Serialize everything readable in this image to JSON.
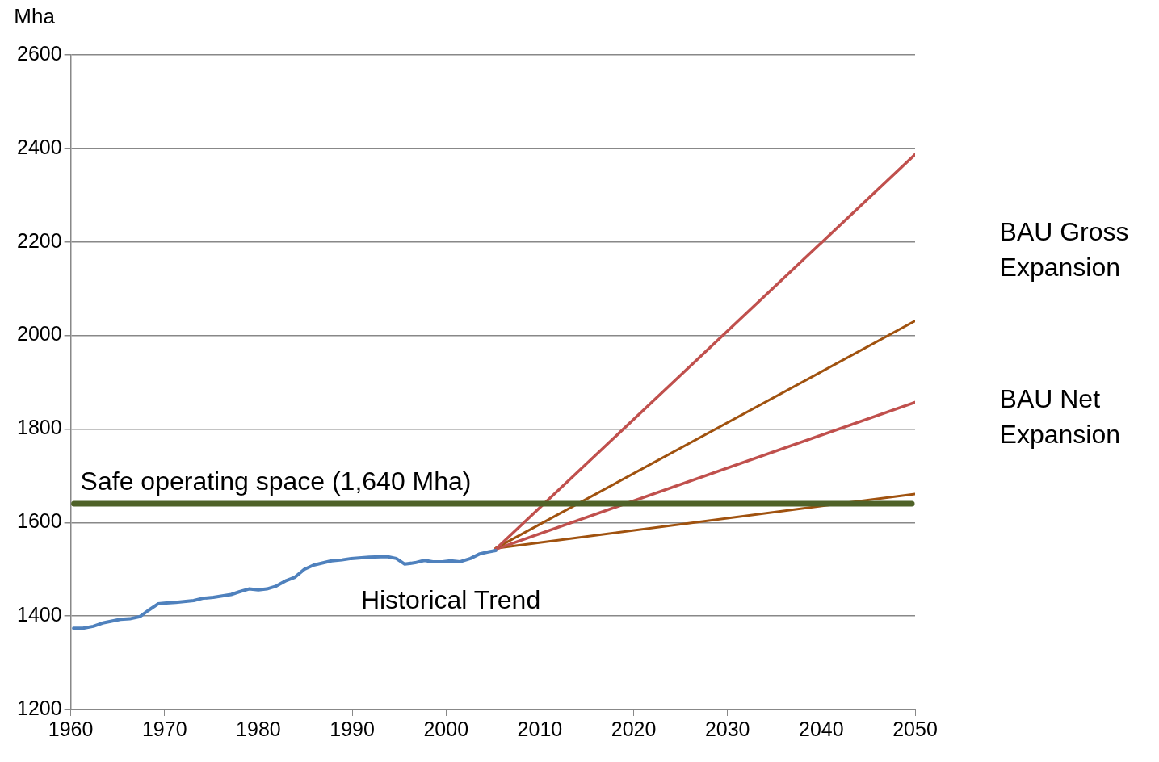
{
  "chart_data": {
    "type": "line",
    "ylabel": "Mha",
    "xlim": [
      1960,
      2050
    ],
    "xticks": [
      1960,
      1970,
      1980,
      1990,
      2000,
      2010,
      2020,
      2030,
      2040,
      2050
    ],
    "ylim": [
      1200,
      2600
    ],
    "yticks": [
      1200,
      1400,
      1600,
      1800,
      2000,
      2200,
      2400,
      2600
    ],
    "grid": "y",
    "legend": false,
    "marker": "none",
    "line_style": "solid",
    "series": [
      {
        "color": "#4f81bd",
        "x": [
          1960.3,
          1961.3,
          1962.4,
          1963.4,
          1965.3,
          1966.3,
          1967.4,
          1968.2,
          1969.3,
          1970.2,
          1971.2,
          1973.1,
          1974.1,
          1975.2,
          1977.1,
          1978,
          1979,
          1980,
          1980.9,
          1981.9,
          1983,
          1983.9,
          1984.9,
          1985.9,
          1987.8,
          1988.9,
          1989.9,
          1991.8,
          1993.7,
          1994.7,
          1995.6,
          1996.7,
          1997.7,
          1998.6,
          1999.6,
          2000.5,
          2001.5,
          2002.6,
          2003.6,
          2004.5,
          2005.3
        ],
        "values": [
          1374,
          1374,
          1378,
          1385,
          1393,
          1394,
          1399,
          1411,
          1426,
          1428,
          1429,
          1433,
          1438,
          1440,
          1446,
          1452,
          1458,
          1456,
          1458,
          1464,
          1476,
          1483,
          1500,
          1509,
          1518,
          1520,
          1523,
          1526,
          1527,
          1523,
          1511,
          1514,
          1519,
          1516,
          1516,
          1518,
          1516,
          1523,
          1533,
          1537,
          1540
        ]
      },
      {
        "color": "#c0504d",
        "x": [
          2005.3,
          2050
        ],
        "values": [
          1543,
          2387
        ]
      },
      {
        "color": "#a0520f",
        "x": [
          2005.3,
          2050
        ],
        "values": [
          1545,
          2031
        ]
      },
      {
        "color": "#c0504d",
        "x": [
          2005.3,
          2050
        ],
        "values": [
          1543,
          1857
        ]
      },
      {
        "color": "#a0520f",
        "x": [
          2005.3,
          2050
        ],
        "values": [
          1545,
          1661
        ]
      }
    ],
    "ref_lines": [
      {
        "axis": "y",
        "value": 1640,
        "label": "Safe operating space (1,640 Mha)",
        "color": "#4f6228"
      }
    ],
    "annotations": [
      "Historical Trend",
      "BAU Gross Expansion",
      "BAU Net Expansion"
    ]
  }
}
